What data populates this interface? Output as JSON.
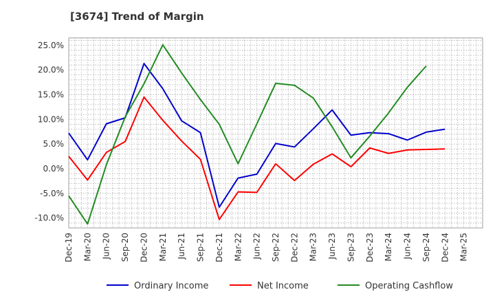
{
  "chart_data": {
    "type": "line",
    "title": "[3674]  Trend of Margin",
    "xlabel": "",
    "ylabel": "",
    "ylim": [
      -12,
      26.5
    ],
    "y_ticks": [
      25,
      20,
      15,
      10,
      5,
      0,
      -5,
      -10
    ],
    "y_tick_labels": [
      "25.0%",
      "20.0%",
      "15.0%",
      "10.0%",
      "5.0%",
      "0.0%",
      "-5.0%",
      "-10.0%"
    ],
    "categories": [
      "Dec-19",
      "Mar-20",
      "Jun-20",
      "Sep-20",
      "Dec-20",
      "Mar-21",
      "Jun-21",
      "Sep-21",
      "Dec-21",
      "Mar-22",
      "Jun-22",
      "Sep-22",
      "Dec-22",
      "Mar-23",
      "Jun-23",
      "Sep-23",
      "Dec-23",
      "Mar-24",
      "Jun-24",
      "Sep-24",
      "Dec-24",
      "Mar-25"
    ],
    "grid": true,
    "legend_position": "bottom",
    "series": [
      {
        "name": "Ordinary Income",
        "color": "#0000cc",
        "values": [
          7.2,
          1.8,
          9.1,
          10.3,
          21.3,
          16.2,
          9.7,
          7.3,
          -7.8,
          -1.9,
          -1.1,
          5.1,
          4.4,
          8.1,
          11.9,
          6.8,
          7.3,
          7.1,
          5.8,
          7.4,
          8.0,
          null
        ]
      },
      {
        "name": "Net Income",
        "color": "#ff0000",
        "values": [
          2.5,
          -2.3,
          3.3,
          5.5,
          14.5,
          9.8,
          5.6,
          1.9,
          -10.3,
          -4.7,
          -4.8,
          1.0,
          -2.4,
          0.9,
          3.0,
          0.4,
          4.2,
          3.1,
          3.8,
          3.9,
          4.0,
          null
        ]
      },
      {
        "name": "Operating Cashflow",
        "color": "#228b22",
        "values": [
          -5.5,
          -11.2,
          0.8,
          10.5,
          17.2,
          25.1,
          19.4,
          14.0,
          9.0,
          1.0,
          9.1,
          17.3,
          16.9,
          14.3,
          8.5,
          2.2,
          6.6,
          11.3,
          16.5,
          20.8,
          null,
          null
        ]
      }
    ]
  }
}
